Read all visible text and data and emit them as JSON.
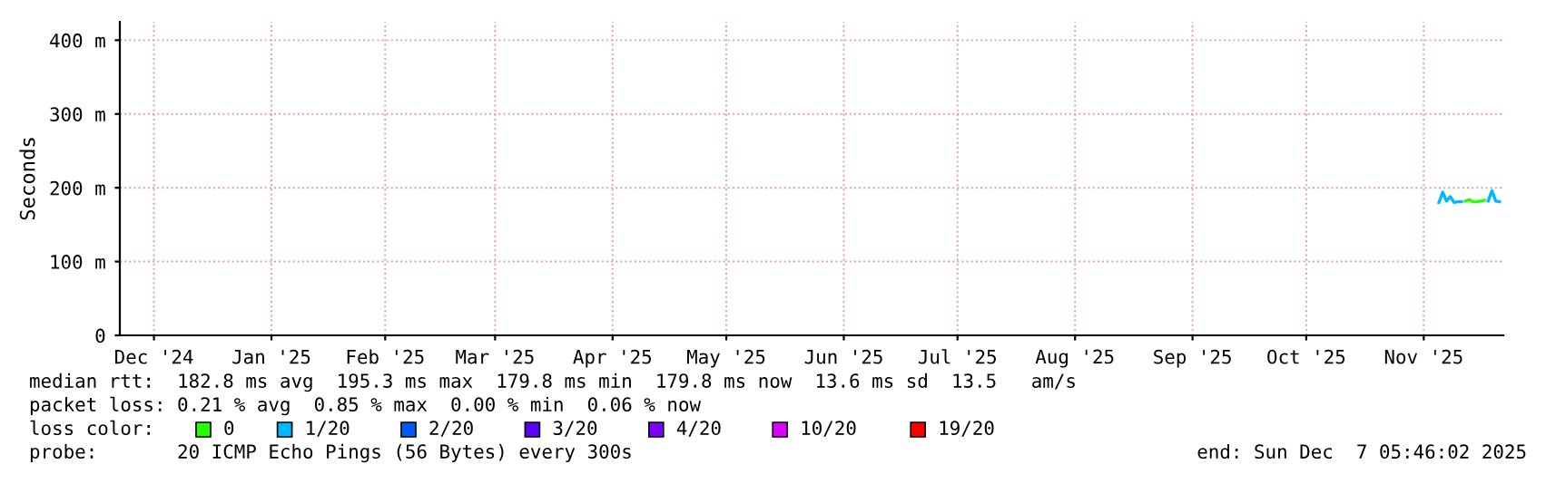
{
  "chart_data": {
    "type": "line",
    "ylabel": "Seconds",
    "legend_title": "loss color:",
    "legend": "bottom",
    "grid": true,
    "line_style": "solid",
    "marker": "none",
    "ylim": [
      0,
      425
    ],
    "yticks": [
      0,
      {
        "value": 100,
        "label": "100 m"
      },
      {
        "value": 200,
        "label": "200 m"
      },
      {
        "value": 300,
        "label": "300 m"
      },
      {
        "value": 400,
        "label": "400 m"
      }
    ],
    "xlim": [
      "2024-12-07",
      "2025-12-07"
    ],
    "xticks": [
      {
        "value": "2024-12-16",
        "label": "Dec '24"
      },
      {
        "value": "2025-01-16",
        "label": "Jan '25"
      },
      {
        "value": "2025-02-15",
        "label": "Feb '25"
      },
      {
        "value": "2025-03-16",
        "label": "Mar '25"
      },
      {
        "value": "2025-04-16",
        "label": "Apr '25"
      },
      {
        "value": "2025-05-16",
        "label": "May '25"
      },
      {
        "value": "2025-06-16",
        "label": "Jun '25"
      },
      {
        "value": "2025-07-16",
        "label": "Jul '25"
      },
      {
        "value": "2025-08-16",
        "label": "Aug '25"
      },
      {
        "value": "2025-09-16",
        "label": "Sep '25"
      },
      {
        "value": "2025-10-16",
        "label": "Oct '25"
      },
      {
        "value": "2025-11-16",
        "label": "Nov '25"
      }
    ],
    "series": [
      {
        "name": "0",
        "color": "#26ff00",
        "x": [
          "2025-11-27",
          "2025-11-28",
          "2025-11-29",
          "2025-11-30",
          "2025-12-01",
          "2025-12-02"
        ],
        "values": [
          182,
          184,
          181,
          181,
          182,
          183
        ]
      },
      {
        "name": "1/20",
        "color": "#00b8ff",
        "x": [
          "2025-11-20",
          "2025-11-21",
          "2025-11-22",
          "2025-11-23",
          "2025-11-24",
          "2025-11-25",
          "2025-11-26",
          "2025-11-27",
          "2025-11-28",
          "2025-11-29",
          "2025-11-30",
          "2025-12-01",
          "2025-12-02",
          "2025-12-03",
          "2025-12-04",
          "2025-12-05",
          "2025-12-06"
        ],
        "values": [
          180,
          194,
          182,
          188,
          180,
          181,
          181,
          null,
          null,
          null,
          null,
          null,
          null,
          182,
          196,
          182,
          181
        ]
      },
      {
        "name": "2/20",
        "color": "#0059ff"
      },
      {
        "name": "3/20",
        "color": "#5e00ff"
      },
      {
        "name": "4/20",
        "color": "#7e00ff"
      },
      {
        "name": "10/20",
        "color": "#dd00ff"
      },
      {
        "name": "19/20",
        "color": "#ff0000"
      }
    ],
    "annotations": [
      "median rtt:  182.8 ms avg  195.3 ms max  179.8 ms min  179.8 ms now  13.6 ms sd  13.5   am/s",
      "packet loss: 0.21 % avg  0.85 % max  0.00 % min  0.06 % now",
      "probe:       20 ICMP Echo Pings (56 Bytes) every 300s",
      "end: Sun Dec  7 05:46:02 2025"
    ]
  }
}
